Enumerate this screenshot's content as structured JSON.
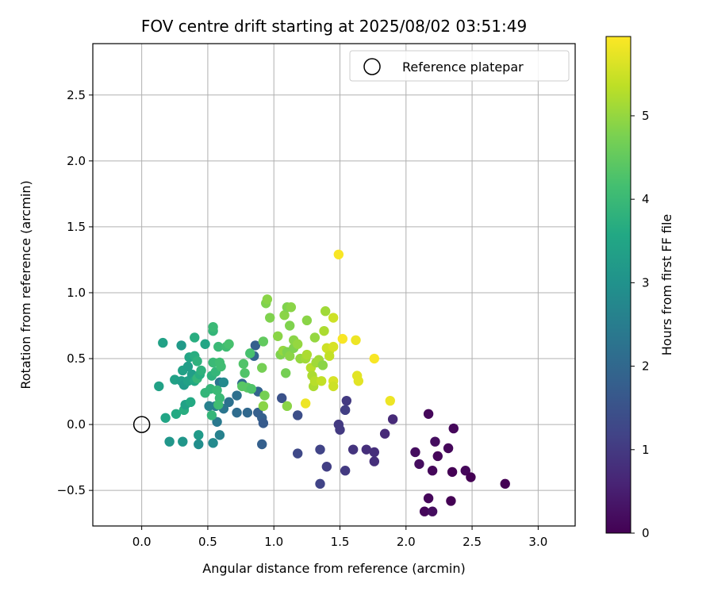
{
  "chart_data": {
    "type": "scatter",
    "title": "FOV centre drift starting at 2025/08/02 03:51:49",
    "xlabel": "Angular distance from reference (arcmin)",
    "ylabel": "Rotation from reference (arcmin)",
    "xlim": [
      -0.37,
      3.28
    ],
    "ylim": [
      -0.77,
      2.89
    ],
    "xticks": [
      "0.0",
      "0.5",
      "1.0",
      "1.5",
      "2.0",
      "2.5",
      "3.0"
    ],
    "xtick_values": [
      0,
      0.5,
      1,
      1.5,
      2,
      2.5,
      3
    ],
    "yticks": [
      "−0.5",
      "0.0",
      "0.5",
      "1.0",
      "1.5",
      "2.0",
      "2.5"
    ],
    "ytick_values": [
      -0.5,
      0,
      0.5,
      1,
      1.5,
      2,
      2.5
    ],
    "grid": true,
    "legend": {
      "placement": "top-right",
      "entries": [
        "Reference platepar"
      ]
    },
    "reference_point": {
      "x": 0.0,
      "y": 0.0
    },
    "colorbar": {
      "label": "Hours from first FF file",
      "colormap": "viridis",
      "range": [
        0,
        5.95
      ],
      "ticks": [
        "0",
        "1",
        "2",
        "3",
        "4",
        "5"
      ],
      "tick_values": [
        0,
        1,
        2,
        3,
        4,
        5
      ]
    },
    "points": [
      {
        "x": 2.17,
        "y": 0.08,
        "t": 0.1
      },
      {
        "x": 2.36,
        "y": -0.03,
        "t": 0.1
      },
      {
        "x": 2.22,
        "y": -0.13,
        "t": 0.2
      },
      {
        "x": 2.07,
        "y": -0.21,
        "t": 0.2
      },
      {
        "x": 2.24,
        "y": -0.24,
        "t": 0.1
      },
      {
        "x": 2.32,
        "y": -0.18,
        "t": 0.1
      },
      {
        "x": 2.1,
        "y": -0.3,
        "t": 0.2
      },
      {
        "x": 2.2,
        "y": -0.35,
        "t": 0.1
      },
      {
        "x": 2.35,
        "y": -0.36,
        "t": 0.0
      },
      {
        "x": 2.45,
        "y": -0.35,
        "t": 0.1
      },
      {
        "x": 2.49,
        "y": -0.4,
        "t": 0.0
      },
      {
        "x": 2.75,
        "y": -0.45,
        "t": 0.0
      },
      {
        "x": 2.17,
        "y": -0.56,
        "t": 0.1
      },
      {
        "x": 2.34,
        "y": -0.58,
        "t": 0.0
      },
      {
        "x": 2.14,
        "y": -0.66,
        "t": 0.1
      },
      {
        "x": 2.2,
        "y": -0.66,
        "t": 0.2
      },
      {
        "x": 1.55,
        "y": 0.18,
        "t": 1.0
      },
      {
        "x": 1.54,
        "y": 0.11,
        "t": 1.1
      },
      {
        "x": 1.9,
        "y": 0.04,
        "t": 0.7
      },
      {
        "x": 1.49,
        "y": 0.0,
        "t": 1.0
      },
      {
        "x": 1.5,
        "y": -0.04,
        "t": 1.0
      },
      {
        "x": 1.84,
        "y": -0.07,
        "t": 0.7
      },
      {
        "x": 1.6,
        "y": -0.19,
        "t": 0.9
      },
      {
        "x": 1.7,
        "y": -0.19,
        "t": 0.8
      },
      {
        "x": 1.76,
        "y": -0.21,
        "t": 0.8
      },
      {
        "x": 1.76,
        "y": -0.28,
        "t": 0.8
      },
      {
        "x": 1.35,
        "y": -0.19,
        "t": 1.2
      },
      {
        "x": 1.4,
        "y": -0.32,
        "t": 1.1
      },
      {
        "x": 1.54,
        "y": -0.35,
        "t": 1.0
      },
      {
        "x": 1.35,
        "y": -0.45,
        "t": 1.2
      },
      {
        "x": 1.18,
        "y": -0.22,
        "t": 1.3
      },
      {
        "x": 1.18,
        "y": 0.07,
        "t": 1.4
      },
      {
        "x": 1.06,
        "y": 0.2,
        "t": 1.5
      },
      {
        "x": 0.86,
        "y": 0.6,
        "t": 1.8
      },
      {
        "x": 0.85,
        "y": 0.52,
        "t": 1.9
      },
      {
        "x": 0.76,
        "y": 0.31,
        "t": 2.0
      },
      {
        "x": 0.72,
        "y": 0.22,
        "t": 2.2
      },
      {
        "x": 0.88,
        "y": 0.25,
        "t": 1.9
      },
      {
        "x": 0.91,
        "y": 0.05,
        "t": 1.8
      },
      {
        "x": 0.92,
        "y": 0.01,
        "t": 1.7
      },
      {
        "x": 0.88,
        "y": 0.09,
        "t": 1.8
      },
      {
        "x": 0.8,
        "y": 0.09,
        "t": 2.0
      },
      {
        "x": 0.72,
        "y": 0.09,
        "t": 2.1
      },
      {
        "x": 0.91,
        "y": -0.15,
        "t": 1.8
      },
      {
        "x": 0.66,
        "y": 0.17,
        "t": 2.2
      },
      {
        "x": 0.62,
        "y": 0.12,
        "t": 2.3
      },
      {
        "x": 0.59,
        "y": 0.32,
        "t": 2.3
      },
      {
        "x": 0.56,
        "y": 0.14,
        "t": 2.5
      },
      {
        "x": 0.57,
        "y": 0.02,
        "t": 2.4
      },
      {
        "x": 0.59,
        "y": -0.08,
        "t": 2.6
      },
      {
        "x": 0.54,
        "y": -0.14,
        "t": 2.8
      },
      {
        "x": 0.43,
        "y": -0.15,
        "t": 2.9
      },
      {
        "x": 0.43,
        "y": -0.08,
        "t": 3.2
      },
      {
        "x": 0.31,
        "y": -0.13,
        "t": 3.1
      },
      {
        "x": 0.21,
        "y": -0.13,
        "t": 3.1
      },
      {
        "x": 0.18,
        "y": 0.05,
        "t": 3.5
      },
      {
        "x": 0.26,
        "y": 0.08,
        "t": 3.6
      },
      {
        "x": 0.32,
        "y": 0.11,
        "t": 3.7
      },
      {
        "x": 0.33,
        "y": 0.15,
        "t": 3.4
      },
      {
        "x": 0.37,
        "y": 0.17,
        "t": 3.6
      },
      {
        "x": 0.51,
        "y": 0.14,
        "t": 2.6
      },
      {
        "x": 0.53,
        "y": 0.07,
        "t": 3.9
      },
      {
        "x": 0.13,
        "y": 0.29,
        "t": 3.4
      },
      {
        "x": 0.25,
        "y": 0.34,
        "t": 3.4
      },
      {
        "x": 0.3,
        "y": 0.33,
        "t": 3.3
      },
      {
        "x": 0.32,
        "y": 0.3,
        "t": 3.2
      },
      {
        "x": 0.35,
        "y": 0.33,
        "t": 3.4
      },
      {
        "x": 0.38,
        "y": 0.38,
        "t": 3.3
      },
      {
        "x": 0.4,
        "y": 0.33,
        "t": 3.6
      },
      {
        "x": 0.42,
        "y": 0.35,
        "t": 3.9
      },
      {
        "x": 0.44,
        "y": 0.38,
        "t": 3.7
      },
      {
        "x": 0.45,
        "y": 0.41,
        "t": 3.8
      },
      {
        "x": 0.31,
        "y": 0.41,
        "t": 3.4
      },
      {
        "x": 0.35,
        "y": 0.44,
        "t": 3.3
      },
      {
        "x": 0.36,
        "y": 0.51,
        "t": 3.5
      },
      {
        "x": 0.4,
        "y": 0.52,
        "t": 3.7
      },
      {
        "x": 0.42,
        "y": 0.48,
        "t": 3.8
      },
      {
        "x": 0.48,
        "y": 0.61,
        "t": 3.5
      },
      {
        "x": 0.4,
        "y": 0.66,
        "t": 3.7
      },
      {
        "x": 0.3,
        "y": 0.6,
        "t": 3.2
      },
      {
        "x": 0.16,
        "y": 0.62,
        "t": 3.4
      },
      {
        "x": 0.48,
        "y": 0.24,
        "t": 3.9
      },
      {
        "x": 0.52,
        "y": 0.27,
        "t": 3.9
      },
      {
        "x": 0.57,
        "y": 0.26,
        "t": 4.0
      },
      {
        "x": 0.59,
        "y": 0.2,
        "t": 4.0
      },
      {
        "x": 0.58,
        "y": 0.15,
        "t": 4.1
      },
      {
        "x": 0.62,
        "y": 0.32,
        "t": 2.8
      },
      {
        "x": 0.53,
        "y": 0.37,
        "t": 3.8
      },
      {
        "x": 0.56,
        "y": 0.4,
        "t": 3.9
      },
      {
        "x": 0.6,
        "y": 0.44,
        "t": 4.1
      },
      {
        "x": 0.54,
        "y": 0.47,
        "t": 4.0
      },
      {
        "x": 0.59,
        "y": 0.47,
        "t": 4.1
      },
      {
        "x": 0.58,
        "y": 0.59,
        "t": 4.0
      },
      {
        "x": 0.64,
        "y": 0.59,
        "t": 4.1
      },
      {
        "x": 0.66,
        "y": 0.61,
        "t": 4.2
      },
      {
        "x": 0.54,
        "y": 0.71,
        "t": 3.9
      },
      {
        "x": 0.54,
        "y": 0.74,
        "t": 4.0
      },
      {
        "x": 0.76,
        "y": 0.29,
        "t": 4.4
      },
      {
        "x": 0.78,
        "y": 0.39,
        "t": 4.3
      },
      {
        "x": 0.77,
        "y": 0.46,
        "t": 4.3
      },
      {
        "x": 0.82,
        "y": 0.54,
        "t": 4.2
      },
      {
        "x": 0.8,
        "y": 0.28,
        "t": 4.4
      },
      {
        "x": 0.83,
        "y": 0.27,
        "t": 4.3
      },
      {
        "x": 0.91,
        "y": 0.43,
        "t": 4.7
      },
      {
        "x": 0.92,
        "y": 0.63,
        "t": 4.5
      },
      {
        "x": 0.92,
        "y": 0.14,
        "t": 4.9
      },
      {
        "x": 0.93,
        "y": 0.22,
        "t": 4.7
      },
      {
        "x": 0.94,
        "y": 0.92,
        "t": 4.8
      },
      {
        "x": 0.95,
        "y": 0.95,
        "t": 4.9
      },
      {
        "x": 0.97,
        "y": 0.81,
        "t": 4.8
      },
      {
        "x": 1.03,
        "y": 0.67,
        "t": 4.9
      },
      {
        "x": 1.05,
        "y": 0.53,
        "t": 4.8
      },
      {
        "x": 1.07,
        "y": 0.56,
        "t": 5.0
      },
      {
        "x": 1.08,
        "y": 0.83,
        "t": 4.9
      },
      {
        "x": 1.1,
        "y": 0.89,
        "t": 4.8
      },
      {
        "x": 1.13,
        "y": 0.89,
        "t": 4.9
      },
      {
        "x": 1.12,
        "y": 0.75,
        "t": 4.8
      },
      {
        "x": 1.1,
        "y": 0.55,
        "t": 4.8
      },
      {
        "x": 1.12,
        "y": 0.52,
        "t": 4.9
      },
      {
        "x": 1.15,
        "y": 0.58,
        "t": 4.8
      },
      {
        "x": 1.15,
        "y": 0.64,
        "t": 4.9
      },
      {
        "x": 1.18,
        "y": 0.61,
        "t": 5.0
      },
      {
        "x": 1.09,
        "y": 0.39,
        "t": 4.7
      },
      {
        "x": 1.1,
        "y": 0.14,
        "t": 4.9
      },
      {
        "x": 1.2,
        "y": 0.5,
        "t": 5.0
      },
      {
        "x": 1.24,
        "y": 0.5,
        "t": 5.1
      },
      {
        "x": 1.25,
        "y": 0.53,
        "t": 5.2
      },
      {
        "x": 1.25,
        "y": 0.79,
        "t": 4.9
      },
      {
        "x": 1.28,
        "y": 0.43,
        "t": 5.3
      },
      {
        "x": 1.29,
        "y": 0.37,
        "t": 5.2
      },
      {
        "x": 1.3,
        "y": 0.29,
        "t": 5.2
      },
      {
        "x": 1.31,
        "y": 0.33,
        "t": 5.3
      },
      {
        "x": 1.32,
        "y": 0.47,
        "t": 5.1
      },
      {
        "x": 1.34,
        "y": 0.49,
        "t": 5.1
      },
      {
        "x": 1.37,
        "y": 0.45,
        "t": 4.9
      },
      {
        "x": 1.38,
        "y": 0.71,
        "t": 5.2
      },
      {
        "x": 1.31,
        "y": 0.66,
        "t": 5.0
      },
      {
        "x": 1.36,
        "y": 0.33,
        "t": 5.4
      },
      {
        "x": 1.39,
        "y": 0.86,
        "t": 5.1
      },
      {
        "x": 1.4,
        "y": 0.58,
        "t": 5.5
      },
      {
        "x": 1.42,
        "y": 0.56,
        "t": 5.5
      },
      {
        "x": 1.42,
        "y": 0.52,
        "t": 5.4
      },
      {
        "x": 1.45,
        "y": 0.59,
        "t": 5.6
      },
      {
        "x": 1.45,
        "y": 0.81,
        "t": 5.5
      },
      {
        "x": 1.45,
        "y": 0.33,
        "t": 5.6
      },
      {
        "x": 1.45,
        "y": 0.29,
        "t": 5.5
      },
      {
        "x": 1.24,
        "y": 0.16,
        "t": 5.8
      },
      {
        "x": 1.52,
        "y": 0.65,
        "t": 5.9
      },
      {
        "x": 1.62,
        "y": 0.64,
        "t": 5.8
      },
      {
        "x": 1.63,
        "y": 0.37,
        "t": 5.7
      },
      {
        "x": 1.64,
        "y": 0.33,
        "t": 5.7
      },
      {
        "x": 1.76,
        "y": 0.5,
        "t": 5.9
      },
      {
        "x": 1.88,
        "y": 0.18,
        "t": 5.8
      },
      {
        "x": 1.49,
        "y": 1.29,
        "t": 5.9
      }
    ]
  }
}
